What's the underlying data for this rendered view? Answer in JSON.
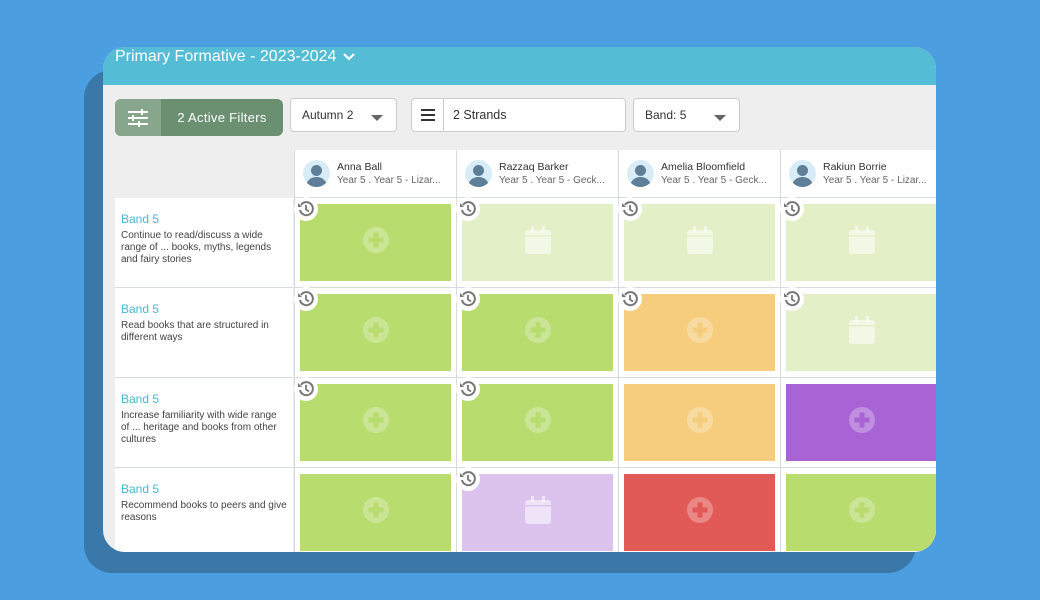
{
  "header": {
    "title": "Primary Formative - 2023-2024"
  },
  "toolbar": {
    "filters_label": "2 Active Filters",
    "term": "Autumn 2",
    "strands": "2 Strands",
    "band": "Band: 5"
  },
  "colors": {
    "green": "#b8dc6e",
    "light_green": "#e2efc7",
    "orange": "#f6cd7c",
    "purple": "#a864d4",
    "lavender": "#dcc3ee",
    "red": "#e15a57",
    "header": "#55bcd5",
    "filter": "#6b9071"
  },
  "students": [
    {
      "name": "Anna Ball",
      "sub": "Year 5 . Year 5 - Lizar..."
    },
    {
      "name": "Razzaq Barker",
      "sub": "Year 5 . Year 5 - Geck..."
    },
    {
      "name": "Amelia Bloomfield",
      "sub": "Year 5 . Year 5 - Geck..."
    },
    {
      "name": "Rakiun Borrie",
      "sub": "Year 5 . Year 5 - Lizar..."
    }
  ],
  "rows": [
    {
      "band": "Band 5",
      "desc": "Continue to read/discuss a wide range of ... books, myths, legends and fairy stories",
      "cells": [
        {
          "color": "green",
          "icon": "plus-icon",
          "history": true
        },
        {
          "color": "light_green",
          "icon": "calendar-icon",
          "history": true
        },
        {
          "color": "light_green",
          "icon": "calendar-icon",
          "history": true
        },
        {
          "color": "light_green",
          "icon": "calendar-icon",
          "history": true
        }
      ]
    },
    {
      "band": "Band 5",
      "desc": "Read books that are structured in different ways",
      "cells": [
        {
          "color": "green",
          "icon": "plus-icon",
          "history": true
        },
        {
          "color": "green",
          "icon": "plus-icon",
          "history": true
        },
        {
          "color": "orange",
          "icon": "plus-icon",
          "history": true
        },
        {
          "color": "light_green",
          "icon": "calendar-icon",
          "history": true
        }
      ]
    },
    {
      "band": "Band 5",
      "desc": "Increase familiarity with wide range of ... heritage and books from other cultures",
      "cells": [
        {
          "color": "green",
          "icon": "plus-icon",
          "history": true
        },
        {
          "color": "green",
          "icon": "plus-icon",
          "history": true
        },
        {
          "color": "orange",
          "icon": "plus-icon",
          "history": false
        },
        {
          "color": "purple",
          "icon": "plus-icon",
          "history": false
        }
      ]
    },
    {
      "band": "Band 5",
      "desc": "Recommend books to peers and give reasons",
      "cells": [
        {
          "color": "green",
          "icon": "plus-icon",
          "history": false
        },
        {
          "color": "lavender",
          "icon": "calendar-icon",
          "history": true
        },
        {
          "color": "red",
          "icon": "plus-icon",
          "history": false
        },
        {
          "color": "green",
          "icon": "plus-icon",
          "history": false
        }
      ]
    }
  ]
}
